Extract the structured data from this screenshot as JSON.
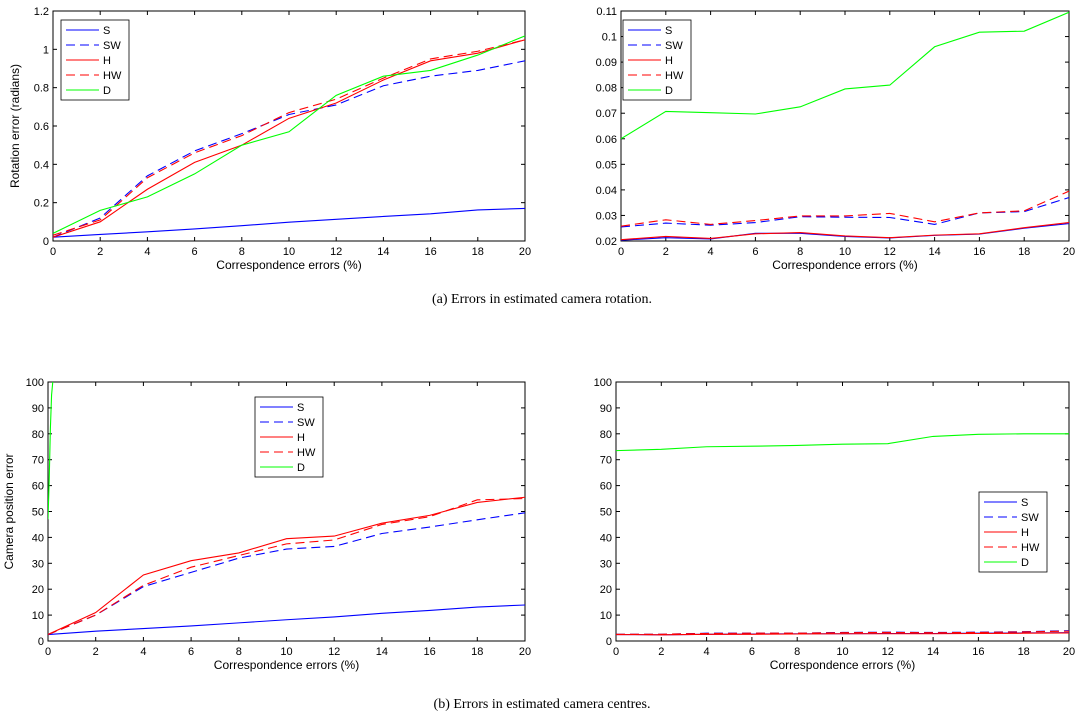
{
  "captions": {
    "a": "(a) Errors in estimated camera rotation.",
    "b": "(b) Errors in estimated camera centres."
  },
  "styles": {
    "S": {
      "color": "#0000ff",
      "dash": "solid"
    },
    "SW": {
      "color": "#0000ff",
      "dash": "dashed"
    },
    "H": {
      "color": "#ff0000",
      "dash": "solid"
    },
    "HW": {
      "color": "#ff0000",
      "dash": "dashed"
    },
    "D": {
      "color": "#00ff00",
      "dash": "solid"
    }
  },
  "chart_data": [
    {
      "type": "line",
      "xlabel": "Correspondence errors (%)",
      "ylabel": "Rotation error (radians)",
      "xlim": [
        0,
        20
      ],
      "ylim": [
        0,
        1.2
      ],
      "xticks": [
        0,
        2,
        4,
        6,
        8,
        10,
        12,
        14,
        16,
        18,
        20
      ],
      "yticks": [
        0,
        0.2,
        0.4,
        0.6,
        0.8,
        1,
        1.2
      ],
      "grid": false,
      "legend": "top-left",
      "x": [
        0,
        2,
        4,
        6,
        8,
        10,
        12,
        14,
        16,
        18,
        20
      ],
      "series": [
        {
          "name": "S",
          "values": [
            0.02,
            0.034,
            0.048,
            0.063,
            0.08,
            0.098,
            0.113,
            0.128,
            0.142,
            0.162,
            0.17
          ]
        },
        {
          "name": "SW",
          "values": [
            0.02,
            0.12,
            0.34,
            0.47,
            0.56,
            0.66,
            0.71,
            0.81,
            0.86,
            0.89,
            0.94
          ]
        },
        {
          "name": "H",
          "values": [
            0.02,
            0.1,
            0.27,
            0.41,
            0.5,
            0.64,
            0.72,
            0.84,
            0.94,
            0.98,
            1.05
          ]
        },
        {
          "name": "HW",
          "values": [
            0.03,
            0.11,
            0.33,
            0.46,
            0.55,
            0.67,
            0.74,
            0.85,
            0.95,
            0.99,
            1.05
          ]
        },
        {
          "name": "D",
          "values": [
            0.04,
            0.16,
            0.23,
            0.35,
            0.5,
            0.57,
            0.76,
            0.86,
            0.89,
            0.97,
            1.07
          ]
        }
      ]
    },
    {
      "type": "line",
      "xlabel": "Correspondence errors (%)",
      "ylabel": "",
      "xlim": [
        0,
        20
      ],
      "ylim": [
        0.02,
        0.11
      ],
      "xticks": [
        0,
        2,
        4,
        6,
        8,
        10,
        12,
        14,
        16,
        18,
        20
      ],
      "yticks": [
        0.02,
        0.03,
        0.04,
        0.05,
        0.06,
        0.07,
        0.08,
        0.09,
        0.1,
        0.11
      ],
      "grid": false,
      "legend": "top-left",
      "x": [
        0,
        2,
        4,
        6,
        8,
        10,
        12,
        14,
        16,
        18,
        20
      ],
      "series": [
        {
          "name": "S",
          "values": [
            0.0203,
            0.0213,
            0.0208,
            0.023,
            0.023,
            0.0218,
            0.0212,
            0.0222,
            0.0227,
            0.025,
            0.0268
          ]
        },
        {
          "name": "SW",
          "values": [
            0.0255,
            0.027,
            0.0262,
            0.0272,
            0.0295,
            0.0293,
            0.0292,
            0.0265,
            0.031,
            0.0315,
            0.037
          ]
        },
        {
          "name": "H",
          "values": [
            0.0205,
            0.0218,
            0.021,
            0.0228,
            0.0233,
            0.022,
            0.0213,
            0.0223,
            0.0228,
            0.0252,
            0.0272
          ]
        },
        {
          "name": "HW",
          "values": [
            0.0258,
            0.0283,
            0.0265,
            0.028,
            0.0298,
            0.0298,
            0.0308,
            0.0275,
            0.031,
            0.0318,
            0.0395
          ]
        },
        {
          "name": "D",
          "values": [
            0.06,
            0.0707,
            0.0702,
            0.0697,
            0.0725,
            0.0795,
            0.081,
            0.096,
            0.1017,
            0.1021,
            0.1095
          ]
        }
      ]
    },
    {
      "type": "line",
      "xlabel": "Correspondence errors (%)",
      "ylabel": "Camera position error",
      "xlim": [
        0,
        20
      ],
      "ylim": [
        0,
        100
      ],
      "xticks": [
        0,
        2,
        4,
        6,
        8,
        10,
        12,
        14,
        16,
        18,
        20
      ],
      "yticks": [
        0,
        10,
        20,
        30,
        40,
        50,
        60,
        70,
        80,
        90,
        100
      ],
      "grid": false,
      "legend": "top-center",
      "x": [
        0,
        2,
        4,
        6,
        8,
        10,
        12,
        14,
        16,
        18,
        20
      ],
      "series": [
        {
          "name": "S",
          "values": [
            2.5,
            3.8,
            4.8,
            5.8,
            7,
            8.2,
            9.3,
            10.7,
            11.8,
            13.1,
            13.9
          ]
        },
        {
          "name": "SW",
          "values": [
            2.5,
            10,
            21,
            26.5,
            32,
            35.5,
            36.5,
            41.5,
            44,
            46.8,
            49.5
          ]
        },
        {
          "name": "H",
          "values": [
            2.5,
            11,
            25.5,
            31,
            34,
            39.5,
            40.5,
            45.5,
            48.5,
            53.5,
            55.5
          ]
        },
        {
          "name": "HW",
          "values": [
            2.5,
            10,
            21.5,
            28.5,
            33,
            37.5,
            39,
            45,
            48,
            54.5,
            55
          ]
        },
        {
          "name": "D",
          "x": [
            0,
            0.05,
            0.1,
            0.15,
            0.2
          ],
          "values": [
            47,
            62,
            82,
            95,
            100
          ]
        }
      ]
    },
    {
      "type": "line",
      "xlabel": "Correspondence errors (%)",
      "ylabel": "",
      "xlim": [
        0,
        20
      ],
      "ylim": [
        0,
        100
      ],
      "xticks": [
        0,
        2,
        4,
        6,
        8,
        10,
        12,
        14,
        16,
        18,
        20
      ],
      "yticks": [
        0,
        10,
        20,
        30,
        40,
        50,
        60,
        70,
        80,
        90,
        100
      ],
      "grid": false,
      "legend": "bottom-right",
      "x": [
        0,
        2,
        4,
        6,
        8,
        10,
        12,
        14,
        16,
        18,
        20
      ],
      "series": [
        {
          "name": "S",
          "values": [
            2.5,
            2.4,
            2.6,
            2.7,
            2.8,
            2.8,
            2.9,
            2.9,
            3,
            3.1,
            3.2
          ]
        },
        {
          "name": "SW",
          "values": [
            2.6,
            2.6,
            3,
            3,
            3,
            3.3,
            3.4,
            3.3,
            3.4,
            3.6,
            4
          ]
        },
        {
          "name": "H",
          "values": [
            2.5,
            2.4,
            2.6,
            2.6,
            2.7,
            2.8,
            2.8,
            2.8,
            2.9,
            3,
            3.1
          ]
        },
        {
          "name": "HW",
          "values": [
            2.6,
            2.6,
            2.9,
            3,
            3,
            3.2,
            3.3,
            3.2,
            3.3,
            3.5,
            3.8
          ]
        },
        {
          "name": "D",
          "values": [
            73.5,
            74,
            75,
            75.2,
            75.5,
            76,
            76.2,
            79,
            79.8,
            80,
            80
          ]
        }
      ]
    }
  ]
}
